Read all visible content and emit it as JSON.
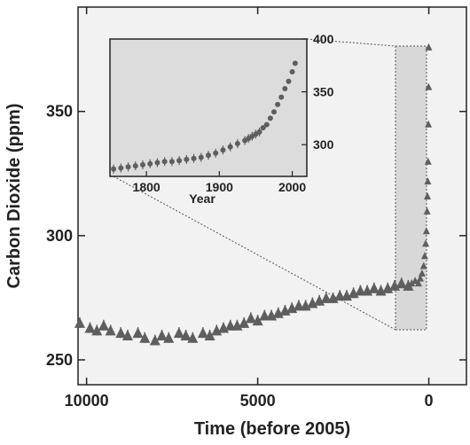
{
  "chart_data": [
    {
      "type": "scatter",
      "title": "",
      "xlabel": "Time (before 2005)",
      "ylabel": "Carbon Dioxide (ppm)",
      "x_reversed": true,
      "xlim": [
        10250,
        -1100
      ],
      "ylim": [
        240,
        392
      ],
      "x_ticks": [
        10000,
        5000,
        0
      ],
      "x_tick_labels": [
        "10000",
        "5000",
        "0"
      ],
      "y_ticks": [
        250,
        300,
        350
      ],
      "y_tick_labels": [
        "250",
        "300",
        "350"
      ],
      "grid": false,
      "colors": {
        "panel": "#f2f2f2",
        "marker": "#5e5e5e",
        "inset_panel": "#dcdcdc",
        "highlight": "#d8d8d8"
      },
      "series": [
        {
          "x": [
            10200,
            9900,
            9700,
            9500,
            9300,
            9000,
            8800,
            8500,
            8300,
            8000,
            7800,
            7600,
            7300,
            7100,
            6900,
            6600,
            6400,
            6200,
            6000,
            5800,
            5600,
            5400,
            5200,
            5000,
            4800,
            4600,
            4400,
            4200,
            4000,
            3800,
            3600,
            3400,
            3200,
            3000,
            2800,
            2600,
            2400,
            2200,
            2000,
            1800,
            1600,
            1400,
            1200,
            1000,
            800,
            600,
            500,
            400,
            300,
            250,
            200,
            150,
            120,
            90,
            70,
            50,
            40,
            30,
            20,
            12,
            6,
            2
          ],
          "y": [
            265,
            263,
            262,
            264,
            262,
            261,
            260,
            261,
            259,
            258,
            260,
            259,
            261,
            260,
            259,
            261,
            260,
            262,
            263,
            264,
            264,
            265,
            267,
            266,
            268,
            268,
            269,
            270,
            271,
            272,
            272,
            273,
            274,
            275,
            275,
            276,
            276,
            277,
            278,
            278,
            279,
            278,
            279,
            280,
            281,
            280,
            281,
            282,
            281,
            283,
            285,
            288,
            292,
            297,
            302,
            310,
            316,
            322,
            330,
            345,
            360,
            376
          ]
        }
      ]
    },
    {
      "type": "scatter",
      "title": "",
      "xlabel": "Year",
      "ylabel": "",
      "xlim": [
        1750,
        2020
      ],
      "ylim": [
        270,
        400
      ],
      "x_ticks": [
        1800,
        1900,
        2000
      ],
      "x_tick_labels": [
        "1800",
        "1900",
        "2000"
      ],
      "y_ticks": [
        300,
        350,
        400
      ],
      "y_tick_labels": [
        "300",
        "350",
        "400"
      ],
      "grid": false,
      "series": [
        {
          "x": [
            1755,
            1765,
            1775,
            1785,
            1795,
            1805,
            1815,
            1825,
            1835,
            1845,
            1855,
            1865,
            1875,
            1885,
            1895,
            1905,
            1915,
            1925,
            1935,
            1940,
            1945,
            1950,
            1955,
            1960,
            1965,
            1970,
            1975,
            1980,
            1985,
            1990,
            1995,
            2000,
            2004
          ],
          "y": [
            277,
            278,
            279,
            280,
            281,
            282,
            283,
            284,
            284,
            285,
            286,
            287,
            288,
            290,
            292,
            295,
            298,
            301,
            304,
            306,
            308,
            310,
            312,
            316,
            319,
            325,
            331,
            338,
            345,
            353,
            360,
            369,
            377
          ]
        }
      ]
    }
  ]
}
